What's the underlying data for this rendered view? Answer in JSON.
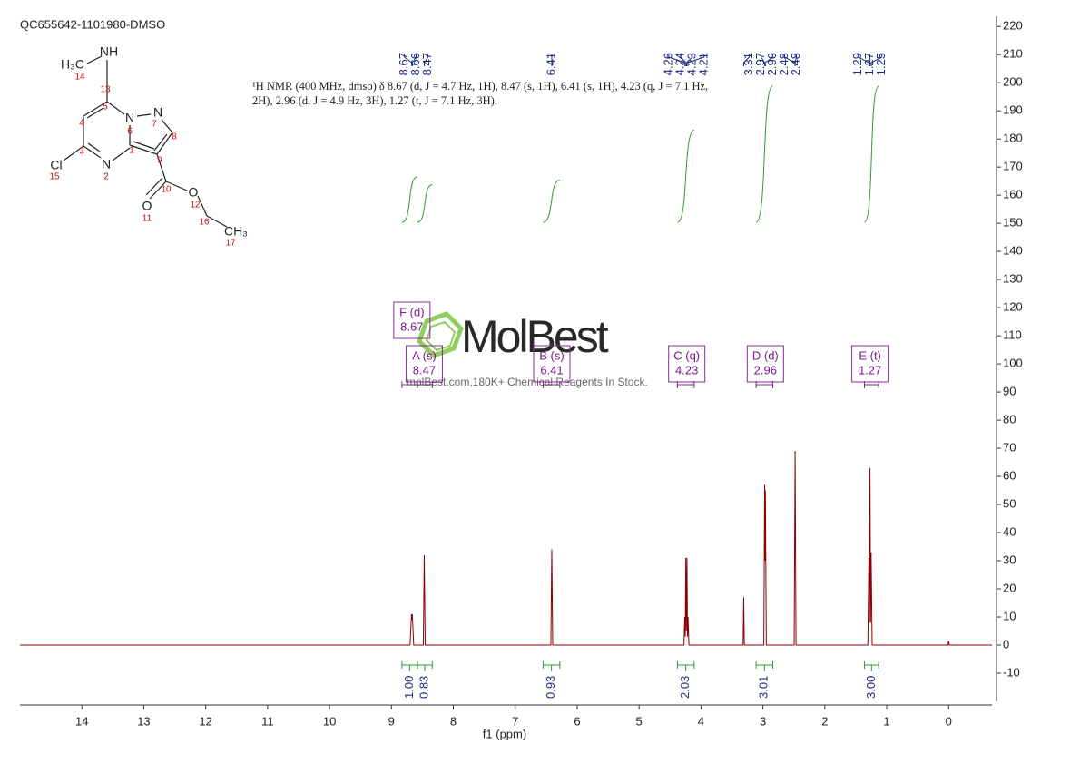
{
  "chart_data": {
    "type": "line",
    "title": "QC655642-1101980-DMSO",
    "description": [
      "¹H NMR (400 MHz, dmso) δ 8.67 (d, J = 4.7 Hz, 1H), 8.47 (s, 1H), 6.41 (s, 1H), 4.23 (q, J = 7.1 Hz,",
      "2H), 2.96 (d, J = 4.9 Hz, 3H), 1.27 (t, J = 7.1 Hz, 3H)."
    ],
    "x": [
      15,
      8.7,
      8.675,
      8.669,
      8.663,
      8.64,
      8.485,
      8.47,
      8.455,
      6.425,
      6.41,
      6.395,
      4.275,
      4.262,
      4.254,
      4.245,
      4.236,
      4.227,
      4.218,
      4.209,
      4.195,
      3.32,
      3.31,
      3.3,
      2.985,
      2.972,
      2.966,
      2.96,
      2.945,
      2.495,
      2.48,
      2.465,
      1.305,
      1.288,
      1.28,
      1.27,
      1.26,
      1.252,
      1.235,
      0.01,
      0,
      -0.01,
      -0.7
    ],
    "values": [
      0,
      0,
      11,
      9,
      11,
      0,
      0,
      32,
      0,
      0,
      34,
      0,
      0,
      10,
      3,
      31,
      5,
      31,
      3,
      10,
      0,
      0,
      17,
      0,
      0,
      57,
      30,
      55,
      0,
      0,
      69,
      0,
      0,
      31,
      8,
      63,
      8,
      33,
      0,
      0,
      1.5,
      0,
      0
    ],
    "color": "#8b0000",
    "xlim": [
      15,
      -0.7
    ],
    "xticks": [
      14,
      13,
      12,
      11,
      10,
      9,
      8,
      7,
      6,
      5,
      4,
      3,
      2,
      1,
      0
    ],
    "xlabel": "f1 (ppm)",
    "ylim": [
      -20,
      222
    ],
    "yticks": [
      -10,
      0,
      10,
      20,
      30,
      40,
      50,
      60,
      70,
      80,
      90,
      100,
      110,
      120,
      130,
      140,
      150,
      160,
      170,
      180,
      190,
      200,
      210,
      220
    ],
    "peak_labels": [
      8.67,
      8.66,
      8.47,
      6.41,
      4.26,
      4.24,
      4.23,
      4.21,
      3.31,
      2.97,
      2.96,
      2.48,
      2.48,
      1.29,
      1.27,
      1.25
    ],
    "integrals": {
      "ranges": [
        [
          8.83,
          8.58
        ],
        [
          8.58,
          8.34
        ],
        [
          6.55,
          6.28
        ],
        [
          4.38,
          4.11
        ],
        [
          3.11,
          2.84
        ],
        [
          1.36,
          1.13
        ]
      ],
      "values": [
        1,
        0.83,
        0.93,
        2.03,
        3.01,
        3
      ],
      "value_labels": [
        "1.00",
        "0.83",
        "0.93",
        "2.03",
        "3.01",
        "3.00"
      ]
    },
    "multiplets": {
      "names": [
        "F (d)",
        "A (s)",
        "B (s)",
        "C (q)",
        "D (d)",
        "E (t)"
      ],
      "shifts": [
        8.67,
        8.47,
        6.41,
        4.23,
        2.96,
        1.27
      ]
    },
    "watermark": {
      "brand": "MolBest",
      "tagline": "molBest.com,180K+ Chemical Reagents In Stock."
    },
    "structure": {
      "atoms": [
        "H₃C",
        "NH",
        "N",
        "N",
        "N",
        "Cl",
        "O",
        "O",
        "CH₃"
      ],
      "numbers": [
        14,
        13,
        5,
        4,
        6,
        7,
        8,
        3,
        1,
        9,
        2,
        15,
        10,
        12,
        11,
        16,
        17
      ]
    }
  }
}
